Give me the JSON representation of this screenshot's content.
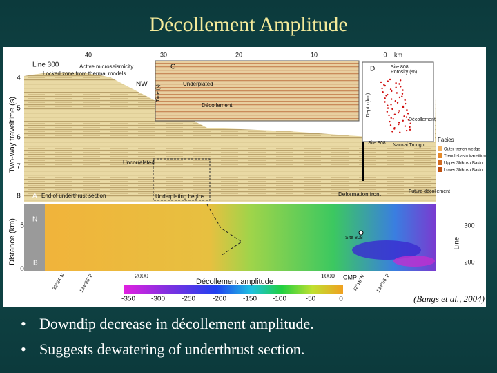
{
  "title": "Décollement Amplitude",
  "figure": {
    "km_axis": {
      "ticks": [
        40,
        30,
        20,
        10,
        0
      ],
      "unit": "km"
    },
    "time_axis": {
      "label": "Two-way traveltime (s)",
      "ticks": [
        4,
        5,
        6,
        7,
        8
      ]
    },
    "distance_axis": {
      "label": "Distance (km)",
      "ticks": [
        5,
        0
      ]
    },
    "line_axis": {
      "label": "Line",
      "ticks": [
        300,
        200
      ]
    },
    "cmp_axis": {
      "ticks": [
        2000,
        1000
      ],
      "unit": "CMP"
    },
    "coordinates": [
      "32°34' N",
      "134°35' E",
      "32°18' N",
      "134°56' E"
    ],
    "panel_a": {
      "letter": "A",
      "line": "Line 300",
      "active": "Active microseismicity",
      "locked": "Locked zone from thermal models",
      "direction": "NW",
      "uncorrelated": "Uncorrelated",
      "end_underthrust": "End of underthrust section",
      "underplating": "Underplating begins",
      "deformation_front": "Deformation front",
      "future": "Future décollement",
      "site": "Site 808",
      "trough": "Nankai Trough"
    },
    "panel_c": {
      "letter": "C",
      "time": "Time (s)",
      "underplated": "Underplated",
      "decollement": "Décollement"
    },
    "panel_d": {
      "letter": "D",
      "site": "Site 808",
      "porosity": "Porosity (%)",
      "depth": "Depth (km)",
      "decollement": "Décollement"
    },
    "facies": {
      "title": "Facies",
      "items": [
        "Outer trench wedge",
        "Trench-basin transition",
        "Upper Shikoku Basin",
        "Lower Shikoku Basin"
      ]
    },
    "panel_b": {
      "letter": "B",
      "north": "N",
      "site": "Site 808"
    },
    "colorbar": {
      "title": "Décollement amplitude",
      "ticks": [
        -350,
        -300,
        -250,
        -200,
        -150,
        -100,
        -50,
        0
      ]
    }
  },
  "citation": "(Bangs et al., 2004)",
  "bullets": [
    "Downdip decrease in décollement amplitude.",
    "Suggests dewatering of underthrust section."
  ]
}
